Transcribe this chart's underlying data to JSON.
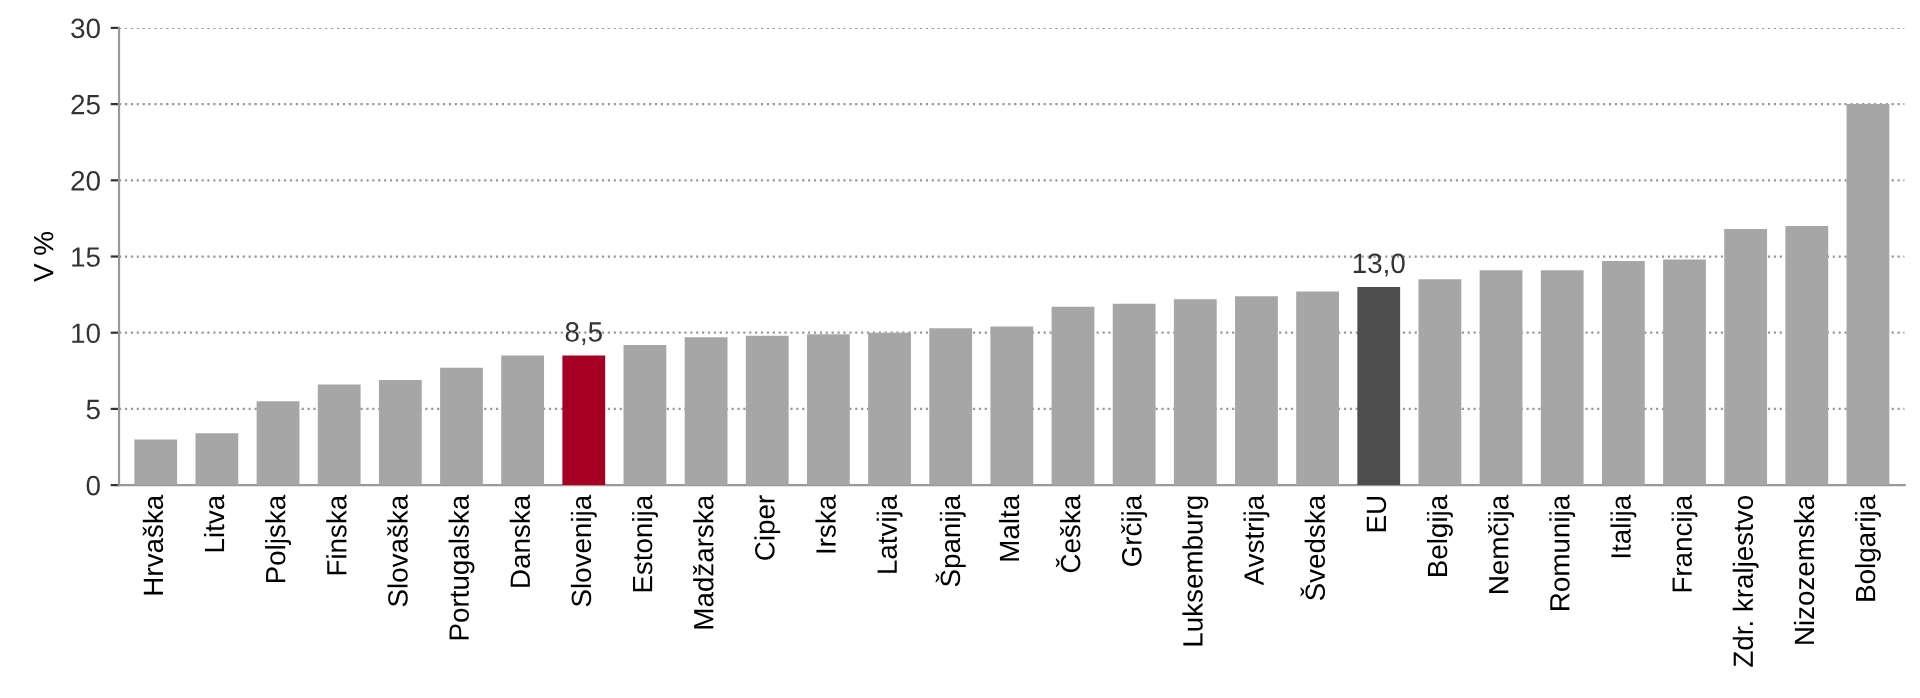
{
  "chart_data": {
    "type": "bar",
    "ylabel": "V %",
    "categories": [
      "Hrvaška",
      "Litva",
      "Poljska",
      "Finska",
      "Slovaška",
      "Portugalska",
      "Danska",
      "Slovenija",
      "Estonija",
      "Madžarska",
      "Ciper",
      "Irska",
      "Latvija",
      "Španija",
      "Malta",
      "Češka",
      "Grčija",
      "Luksemburg",
      "Avstrija",
      "Švedska",
      "EU",
      "Belgija",
      "Nemčija",
      "Romunija",
      "Italija",
      "Francija",
      "Zdr. kraljestvo",
      "Nizozemska",
      "Bolgarija"
    ],
    "values": [
      3.0,
      3.4,
      5.5,
      6.6,
      6.9,
      7.7,
      8.5,
      8.5,
      9.2,
      9.7,
      9.8,
      9.9,
      10.0,
      10.3,
      10.4,
      11.7,
      11.9,
      12.2,
      12.4,
      12.7,
      13.0,
      13.5,
      14.1,
      14.1,
      14.7,
      14.8,
      16.8,
      17.0,
      25.0
    ],
    "colors": [
      "#a6a6a6",
      "#a6a6a6",
      "#a6a6a6",
      "#a6a6a6",
      "#a6a6a6",
      "#a6a6a6",
      "#a6a6a6",
      "#a50021",
      "#a6a6a6",
      "#a6a6a6",
      "#a6a6a6",
      "#a6a6a6",
      "#a6a6a6",
      "#a6a6a6",
      "#a6a6a6",
      "#a6a6a6",
      "#a6a6a6",
      "#a6a6a6",
      "#a6a6a6",
      "#a6a6a6",
      "#4d4d4d",
      "#a6a6a6",
      "#a6a6a6",
      "#a6a6a6",
      "#a6a6a6",
      "#a6a6a6",
      "#a6a6a6",
      "#a6a6a6",
      "#a6a6a6"
    ],
    "value_labels": [
      null,
      null,
      null,
      null,
      null,
      null,
      null,
      "8,5",
      null,
      null,
      null,
      null,
      null,
      null,
      null,
      null,
      null,
      null,
      null,
      null,
      "13,0",
      null,
      null,
      null,
      null,
      null,
      null,
      null,
      null
    ],
    "ylim": [
      0,
      30
    ],
    "yticks": [
      0,
      5,
      10,
      15,
      20,
      25,
      30
    ],
    "grid": "y"
  }
}
